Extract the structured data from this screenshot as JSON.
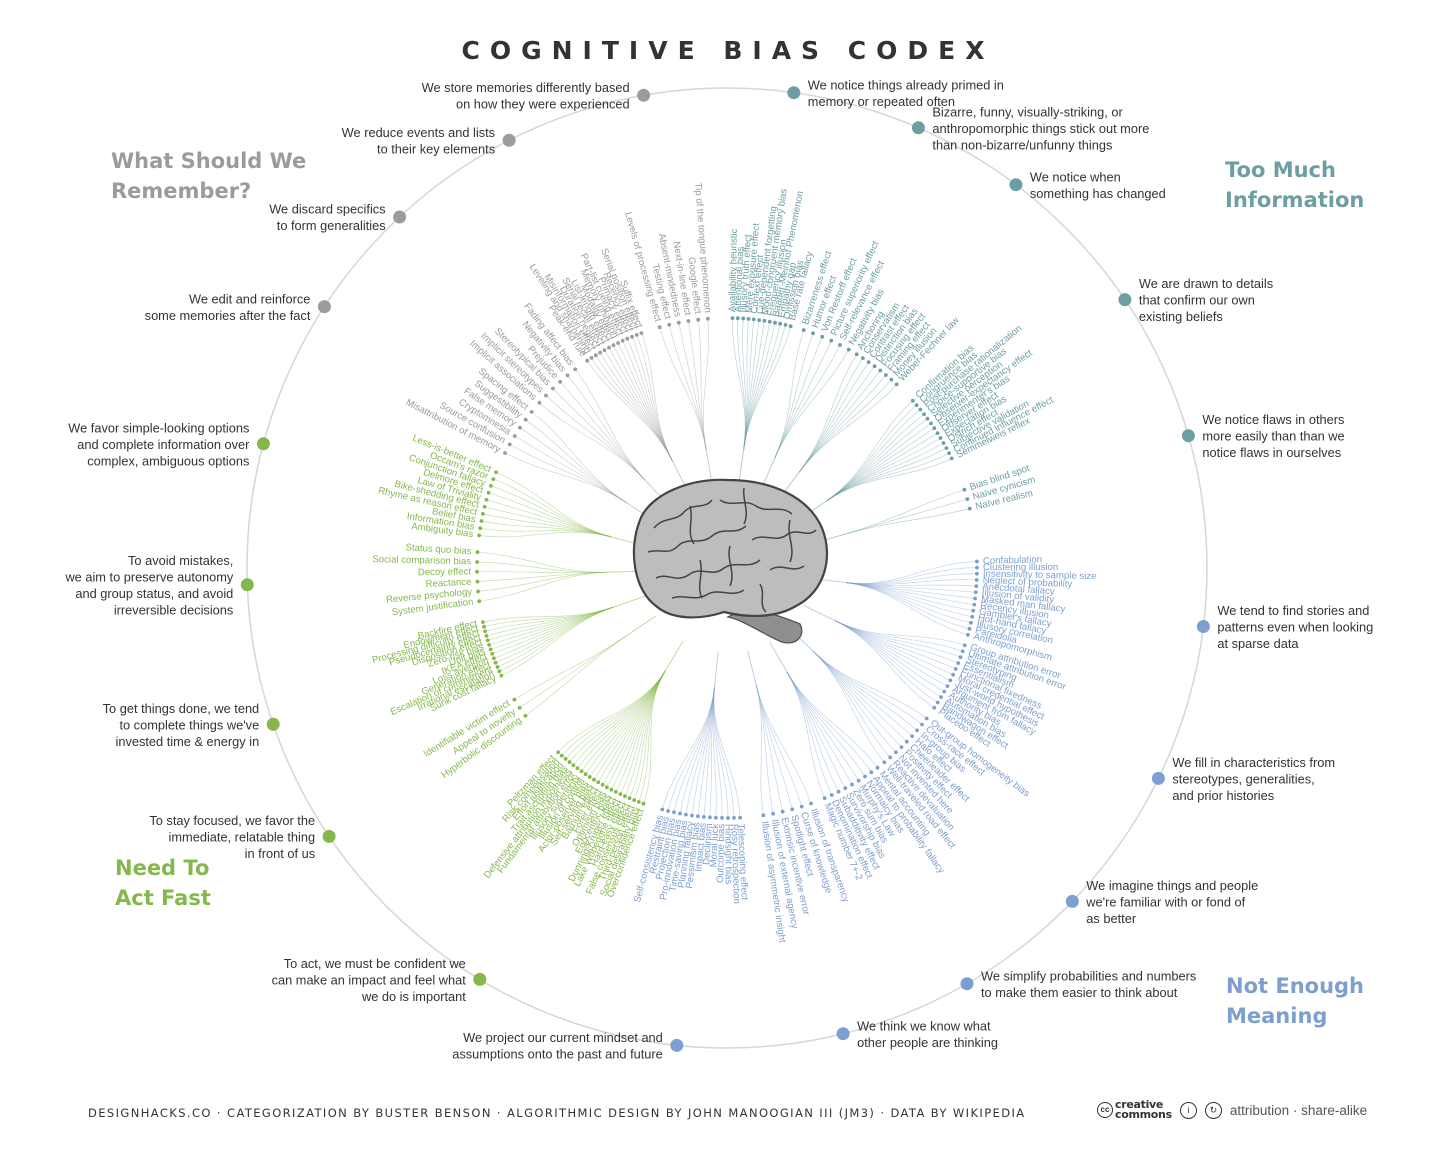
{
  "title": "COGNITIVE BIAS CODEX",
  "corners": {
    "top_left": [
      "What Should We",
      "Remember?"
    ],
    "top_right": [
      "Too Much",
      "Information"
    ],
    "bottom_left": [
      "Need To",
      "Act Fast"
    ],
    "bottom_right": [
      "Not Enough",
      "Meaning"
    ]
  },
  "colors": {
    "remember": "#9b9b9b",
    "info": "#6d9ea3",
    "meaning": "#7d9fcf",
    "fast": "#84b84c",
    "ring": "#d6d6d6",
    "text": "#333333"
  },
  "categories": [
    {
      "color": "info",
      "angle": 8,
      "label": [
        "We notice things already primed in",
        "memory or repeated often"
      ],
      "biases": [
        "Availability heuristic",
        "Attentional bias",
        "Illusory truth effect",
        "Mere exposure effect",
        "Context effect",
        "Cue-dependent forgetting",
        "Mood-congruent memory bias",
        "Frequency illusion",
        "Baader-Meinhof Phenomenon",
        "Empathy gap",
        "Omission bias",
        "Base rate fallacy"
      ]
    },
    {
      "color": "info",
      "angle": 23.5,
      "label": [
        "Bizarre, funny, visually-striking, or",
        "anthropomorphic things stick out more",
        "than non-bizarre/unfunny things"
      ],
      "biases": [
        "Bizarreness effect",
        "Humor effect",
        "Von Restorff effect",
        "Picture superiority effect",
        "Self-relevance effect",
        "Negativity bias"
      ]
    },
    {
      "color": "info",
      "angle": 37,
      "label": [
        "We notice when",
        "something has changed"
      ],
      "biases": [
        "Anchoring",
        "Conservatism",
        "Contrast effect",
        "Distinction bias",
        "Focusing effect",
        "Framing effect",
        "Money illusion",
        "Weber-Fechner law"
      ]
    },
    {
      "color": "info",
      "angle": 56,
      "label": [
        "We are drawn to details",
        "that confirm our own",
        "existing beliefs"
      ],
      "biases": [
        "Confirmation bias",
        "Congruence bias",
        "Post-purchase rationalization",
        "Choice-supportive bias",
        "Selective perception",
        "Observer-expectancy effect",
        "Experimenter's bias",
        "Observer effect",
        "Expectation bias",
        "Ostrich effect",
        "Subjective validation",
        "Continued influence effect",
        "Semmelweis reflex"
      ]
    },
    {
      "color": "info",
      "angle": 74,
      "label": [
        "We notice flaws in others",
        "more easily than than we",
        "notice flaws in ourselves"
      ],
      "biases": [
        "Bias blind spot",
        "Naïve cynicism",
        "Naïve realism"
      ]
    },
    {
      "color": "meaning",
      "angle": 97,
      "label": [
        "We tend to find stories and",
        "patterns even when looking",
        "at sparse data"
      ],
      "biases": [
        "Confabulation",
        "Clustering illusion",
        "Insensitivity to sample size",
        "Neglect of probability",
        "Anecdotal fallacy",
        "Illusion of validity",
        "Masked man fallacy",
        "Recency illusion",
        "Gambler's fallacy",
        "Hot-hand fallacy",
        "Illusory correlation",
        "Pareidolia",
        "Anthropomorphism"
      ]
    },
    {
      "color": "meaning",
      "angle": 116,
      "label": [
        "We fill in characteristics from",
        "stereotypes, generalities,",
        "and prior histories"
      ],
      "biases": [
        "Group attribution error",
        "Ultimate attribution error",
        "Stereotyping",
        "Essentialism",
        "Functional fixedness",
        "Moral credential effect",
        "Just-world hypothesis",
        "Argument from fallacy",
        "Authority bias",
        "Automation bias",
        "Bandwagon effect",
        "Placebo effect"
      ]
    },
    {
      "color": "meaning",
      "angle": 134,
      "label": [
        "We imagine things and people",
        "we're familiar with or fond of",
        "as better"
      ],
      "biases": [
        "Out-group homogeneity bias",
        "Cross-race effect",
        "In-group bias",
        "Halo effect",
        "Cheerleader effect",
        "Positivity effect",
        "Not invented here",
        "Reactive devaluation",
        "Well-traveled road effect"
      ]
    },
    {
      "color": "meaning",
      "angle": 150,
      "label": [
        "We simplify probabilities and numbers",
        "to make them easier to think about"
      ],
      "biases": [
        "Mental accounting",
        "Appeal to probability fallacy",
        "Normalcy bias",
        "Murphy's Law",
        "Zero sum bias",
        "Survivorship bias",
        "Subadditivity effect",
        "Denomination effect",
        "Magic number 7+-2"
      ]
    },
    {
      "color": "meaning",
      "angle": 166,
      "label": [
        "We think we know what",
        "other people are thinking"
      ],
      "biases": [
        "Illusion of transparency",
        "Curse of knowledge",
        "Spotlight effect",
        "Extrinsic incentive error",
        "Illusion of external agency",
        "Illusion of asymmetric insight"
      ]
    },
    {
      "color": "meaning",
      "angle": 186,
      "label": [
        "We project our current mindset and",
        "assumptions onto the past and future"
      ],
      "biases": [
        "Telescoping effect",
        "Rosy retrospection",
        "Hindsight bias",
        "Outcome bias",
        "Moral luck",
        "Declinism",
        "Impact bias",
        "Pessimism bias",
        "Planning fallacy",
        "Time-saving bias",
        "Pro-innovation bias",
        "Projection bias",
        "Restraint bias",
        "Self-consistency bias"
      ]
    },
    {
      "color": "fast",
      "angle": 211,
      "label": [
        "To act, we must be confident we",
        "can make an impact and feel what",
        "we do is important"
      ],
      "biases": [
        "Overconfidence effect",
        "Social desirability bias",
        "Third-person effect",
        "False consensus effect",
        "Hard-easy effect",
        "Lake Wobegone effect",
        "Dunning-Kruger effect",
        "Egocentric bias",
        "Optimism bias",
        "Forer effect",
        "Barnum effect",
        "Self-serving bias",
        "Actor-observer bias",
        "Illusion of control",
        "Illusory superiority",
        "Fundamental attribution error",
        "Defensive attribution hypothesis",
        "Trait ascription bias",
        "Effort justification",
        "Risk compensation",
        "Peltzman effect"
      ]
    },
    {
      "color": "fast",
      "angle": 236,
      "label": [
        "To stay focused, we favor the",
        "immediate, relatable thing",
        "in front of us"
      ],
      "biases": [
        "Hyperbolic discounting",
        "Appeal to novelty",
        "Identifiable victim effect"
      ]
    },
    {
      "color": "fast",
      "angle": 251,
      "label": [
        "To get things done, we tend",
        "to complete things we've",
        "invested time & energy in"
      ],
      "biases": [
        "Sunk cost fallacy",
        "Irrational escalation",
        "Escalation of commitment",
        "Generation effect",
        "Loss aversion",
        "IKEA effect",
        "Unit bias",
        "Zero-risk bias",
        "Disposition effect",
        "Pseudocertainty effect",
        "Processing difficulty effect",
        "Endowment effect",
        "Backfire effect"
      ]
    },
    {
      "color": "fast",
      "angle": 268,
      "label": [
        "To avoid mistakes,",
        "we aim to preserve autonomy",
        "and group status, and avoid",
        "irreversible decisions"
      ],
      "biases": [
        "System justification",
        "Reverse psychology",
        "Reactance",
        "Decoy effect",
        "Social comparison bias",
        "Status quo bias"
      ]
    },
    {
      "color": "fast",
      "angle": 285,
      "label": [
        "We favor simple-looking options",
        "and complete information over",
        "complex, ambiguous options"
      ],
      "biases": [
        "Ambiguity bias",
        "Information bias",
        "Belief bias",
        "Rhyme as reason effect",
        "Bike-shedding effect",
        "Law of Triviality",
        "Delmore effect",
        "Conjunction fallacy",
        "Occam's razor",
        "Less-is-better effect"
      ]
    },
    {
      "color": "remember",
      "angle": 303,
      "label": [
        "We edit and reinforce",
        "some memories after the fact"
      ],
      "biases": [
        "Misattribution of memory",
        "Source confusion",
        "Cryptomnesia",
        "False memory",
        "Suggestibility",
        "Spacing effect"
      ]
    },
    {
      "color": "remember",
      "angle": 317,
      "label": [
        "We discard specifics",
        "to form generalities"
      ],
      "biases": [
        "Implicit associations",
        "Implicit stereotypes",
        "Stereotypical bias",
        "Prejudice",
        "Negativity bias",
        "Fading affect bias"
      ]
    },
    {
      "color": "remember",
      "angle": 333,
      "label": [
        "We reduce events and lists",
        "to their key elements"
      ],
      "biases": [
        "Peak-end rule",
        "Leveling and sharpening",
        "Misinformation effect",
        "Duration neglect",
        "Serial recall effect",
        "List-length effect",
        "Modality effect",
        "Memory inhibition",
        "Part-list cueing effect",
        "Primacy effect",
        "Recency effect",
        "Serial position effect",
        "Suffix effect"
      ]
    },
    {
      "color": "remember",
      "angle": 350,
      "label": [
        "We store memories differently based",
        "on how they were experienced"
      ],
      "biases": [
        "Levels of processing effect",
        "Testing effect",
        "Absent-mindedness",
        "Next-in-line effect",
        "Google effect",
        "Tip of the tongue phenomenon"
      ]
    }
  ],
  "footer": "DESIGNHACKS.CO · CATEGORIZATION BY BUSTER BENSON  ·  ALGORITHMIC DESIGN BY JOHN MANOOGIAN III (JM3)  ·  DATA BY WIKIPEDIA",
  "license": {
    "logo_top": "creative",
    "logo_bottom": "commons",
    "text": "attribution · share-alike"
  }
}
